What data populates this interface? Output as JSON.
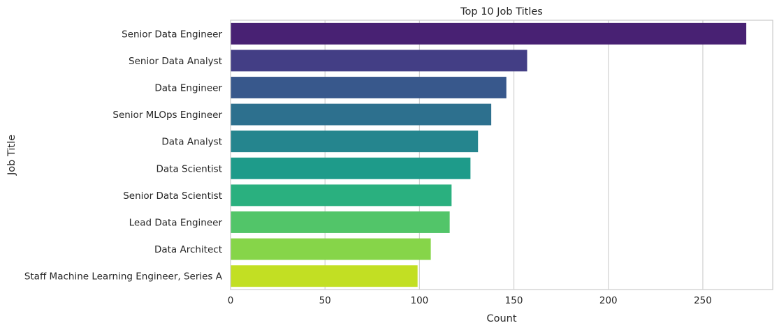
{
  "chart_data": {
    "type": "bar",
    "orientation": "horizontal",
    "title": "Top 10 Job Titles",
    "xlabel": "Count",
    "ylabel": "Job Title",
    "categories": [
      "Senior Data Engineer",
      "Senior Data Analyst",
      "Data Engineer",
      "Senior MLOps Engineer",
      "Data Analyst",
      "Data Scientist",
      "Senior Data Scientist",
      "Lead Data Engineer",
      "Data Architect",
      "Staff Machine Learning Engineer, Series A"
    ],
    "values": [
      273,
      157,
      146,
      138,
      131,
      127,
      117,
      116,
      106,
      99
    ],
    "xlim": [
      0,
      287
    ],
    "xticks": [
      0,
      50,
      100,
      150,
      200,
      250
    ],
    "grid": true,
    "colors": [
      "#482173",
      "#433e85",
      "#38588c",
      "#2d708e",
      "#25858e",
      "#1e9b8a",
      "#2ab07f",
      "#52c569",
      "#86d549",
      "#c2df23"
    ]
  }
}
